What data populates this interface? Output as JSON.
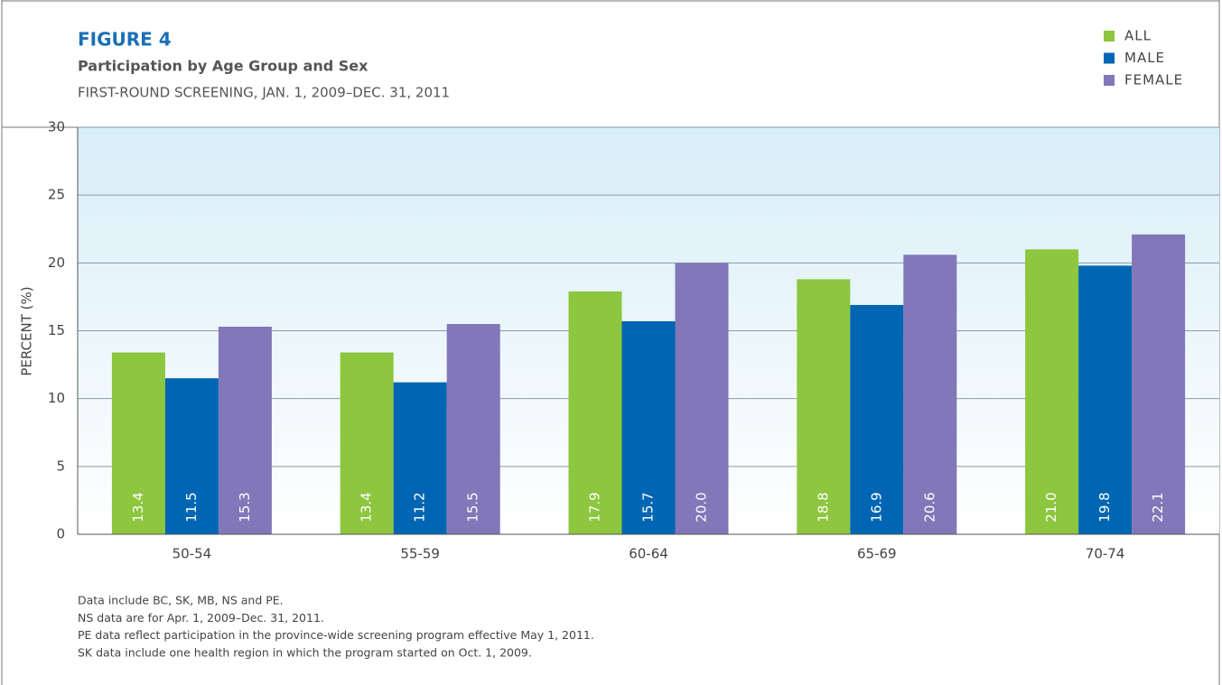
{
  "chart_data": {
    "type": "bar",
    "figure_label": "FIGURE 4",
    "title": "Participation by Age Group and Sex",
    "subtitle": "FIRST-ROUND SCREENING, JAN. 1, 2009–DEC. 31, 2011",
    "y_label": "PERCENT (%)",
    "categories": [
      "50-54",
      "55-59",
      "60-64",
      "65-69",
      "70-74"
    ],
    "series": [
      {
        "name": "ALL",
        "color": "#8dc63f",
        "values": [
          13.4,
          13.4,
          17.9,
          18.8,
          21.0
        ],
        "value_labels": [
          "13.4",
          "13.4",
          "17.9",
          "18.8",
          "21.0"
        ]
      },
      {
        "name": "MALE",
        "color": "#0066b3",
        "values": [
          11.5,
          11.2,
          15.7,
          16.9,
          19.8
        ],
        "value_labels": [
          "11.5",
          "11.2",
          "15.7",
          "16.9",
          "19.8"
        ]
      },
      {
        "name": "FEMALE",
        "color": "#8277b8",
        "values": [
          15.3,
          15.5,
          20.0,
          20.6,
          22.1
        ],
        "value_labels": [
          "15.3",
          "15.5",
          "20.0",
          "20.6",
          "22.1"
        ]
      }
    ],
    "ylim": [
      0,
      30
    ],
    "yticks": [
      0,
      5,
      10,
      15,
      20,
      25,
      30
    ],
    "grid": true,
    "legend": "top-right",
    "footnotes": [
      "Data include BC, SK, MB, NS and PE.",
      "NS data are for Apr. 1, 2009–Dec. 31, 2011.",
      "PE data reflect participation in the province-wide screening program effective May 1, 2011.",
      "SK data include one health region in which the program started on Oct. 1, 2009."
    ]
  }
}
